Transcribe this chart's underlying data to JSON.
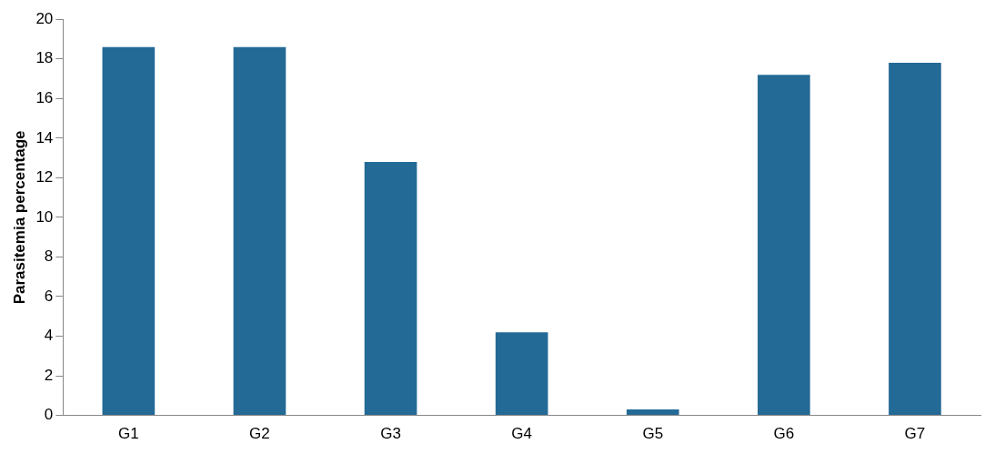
{
  "chart_data": {
    "type": "bar",
    "ylabel": "Parasitemia percentage",
    "categories": [
      "G1",
      "G2",
      "G3",
      "G4",
      "G5",
      "G6",
      "G7"
    ],
    "values": [
      18.6,
      18.6,
      12.8,
      4.2,
      0.3,
      17.2,
      17.8
    ],
    "color": "#246a96",
    "ylim": [
      0,
      20
    ],
    "yticks": [
      0,
      2,
      4,
      6,
      8,
      10,
      12,
      14,
      16,
      18,
      20
    ],
    "grid": false,
    "legend": false
  }
}
